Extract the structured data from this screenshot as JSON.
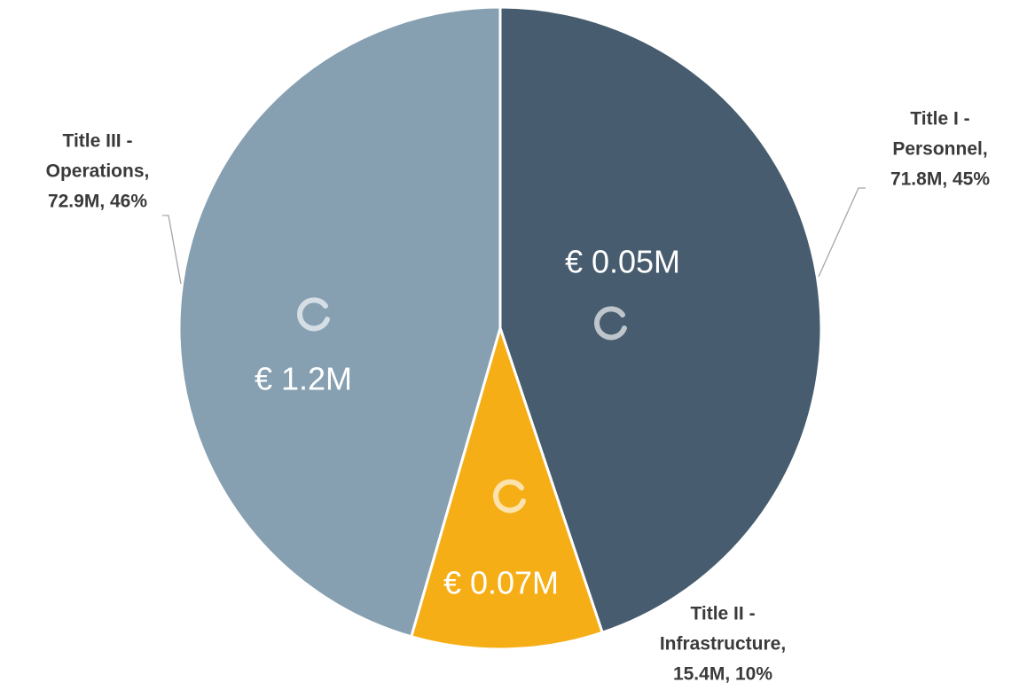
{
  "chart_data": {
    "type": "pie",
    "labels": [
      [
        "Title I -",
        "Personnel,",
        "71.8M, 45%"
      ],
      [
        "Title II  -",
        "Infrastructure,",
        "15.4M, 10%"
      ],
      [
        "Title III -",
        "Operations,",
        "72.9M, 46%"
      ]
    ],
    "values": [
      71.8,
      15.4,
      72.9
    ],
    "percents": [
      45,
      10,
      46
    ],
    "colors": [
      "#475c6e",
      "#f6ae17",
      "#86a0b2"
    ],
    "inner_labels": [
      "€ 0.05M",
      "€ 0.07M",
      "€ 1.2M"
    ]
  }
}
